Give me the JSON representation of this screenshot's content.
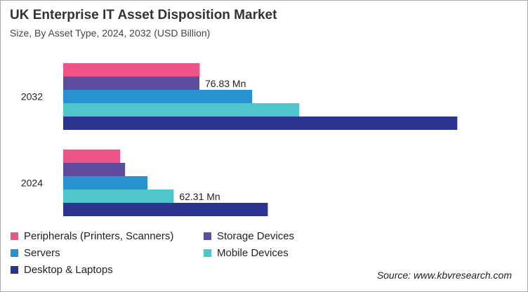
{
  "chart_data": {
    "type": "bar",
    "orientation": "horizontal",
    "title": "UK Enterprise IT Asset Disposition Market",
    "subtitle": "Size, By Asset Type, 2024, 2032 (USD Billion)",
    "categories": [
      "2032",
      "2024"
    ],
    "series": [
      {
        "name": "Peripherals (Printers, Scanners)",
        "color": "#ef5488",
        "values": [
          77.0,
          32.1
        ]
      },
      {
        "name": "Storage Devices",
        "color": "#5e4d9e",
        "values": [
          76.83,
          34.9
        ]
      },
      {
        "name": "Servers",
        "color": "#2892d0",
        "values": [
          106.6,
          47.6
        ]
      },
      {
        "name": "Mobile Devices",
        "color": "#4ec6cc",
        "values": [
          133.2,
          62.31
        ]
      },
      {
        "name": "Desktop & Laptops",
        "color": "#2b3590",
        "values": [
          222.3,
          115.4
        ]
      }
    ],
    "data_labels": [
      {
        "category": "2032",
        "series": "Storage Devices",
        "text": "76.83 Mn"
      },
      {
        "category": "2024",
        "series": "Mobile Devices",
        "text": "62.31 Mn"
      }
    ],
    "xlim": [
      0,
      230
    ],
    "grid": false,
    "legend": "bottom-left"
  },
  "source": "Source: www.kbvresearch.com"
}
